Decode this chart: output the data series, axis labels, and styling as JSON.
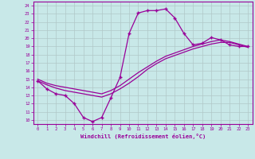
{
  "xlabel": "Windchill (Refroidissement éolien,°C)",
  "x_values": [
    0,
    1,
    2,
    3,
    4,
    5,
    6,
    7,
    8,
    9,
    10,
    11,
    12,
    13,
    14,
    15,
    16,
    17,
    18,
    19,
    20,
    21,
    22,
    23
  ],
  "main_line": [
    14.8,
    13.8,
    13.2,
    13.0,
    12.0,
    10.3,
    9.8,
    10.3,
    12.7,
    15.2,
    20.6,
    23.1,
    23.4,
    23.4,
    23.6,
    22.5,
    20.6,
    19.2,
    19.4,
    20.1,
    19.8,
    19.2,
    19.0,
    19.0
  ],
  "line2": [
    14.8,
    14.3,
    13.9,
    13.6,
    13.4,
    13.2,
    13.0,
    12.8,
    13.2,
    13.8,
    14.5,
    15.3,
    16.2,
    16.9,
    17.5,
    17.9,
    18.3,
    18.7,
    19.0,
    19.3,
    19.5,
    19.5,
    19.2,
    18.9
  ],
  "line3": [
    15.0,
    14.5,
    14.2,
    14.0,
    13.8,
    13.6,
    13.4,
    13.2,
    13.6,
    14.2,
    15.0,
    15.8,
    16.5,
    17.2,
    17.8,
    18.2,
    18.6,
    19.0,
    19.3,
    19.6,
    19.8,
    19.6,
    19.3,
    19.0
  ],
  "line_color": "#990099",
  "bg_color": "#c8e8e8",
  "grid_color": "#b0c8c8",
  "xlim": [
    -0.5,
    23.5
  ],
  "ylim": [
    9.5,
    24.5
  ],
  "yticks": [
    10,
    11,
    12,
    13,
    14,
    15,
    16,
    17,
    18,
    19,
    20,
    21,
    22,
    23,
    24
  ],
  "xticks": [
    0,
    1,
    2,
    3,
    4,
    5,
    6,
    7,
    8,
    9,
    10,
    11,
    12,
    13,
    14,
    15,
    16,
    17,
    18,
    19,
    20,
    21,
    22,
    23
  ]
}
